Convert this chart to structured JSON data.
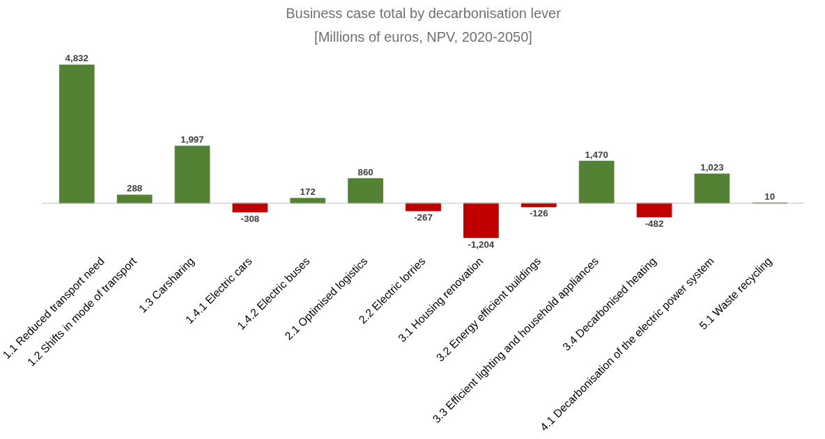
{
  "chart_data": {
    "type": "bar",
    "title": "Business case total by decarbonisation lever",
    "subtitle": "[Millions of euros, NPV, 2020-2050]",
    "categories": [
      "1.1 Reduced transport need",
      "1.2 Shifts in mode of transport",
      "1.3 Carsharing",
      "1.4.1 Electric cars",
      "1.4.2 Electric buses",
      "2.1 Optimised logistics",
      "2.2 Electric lorries",
      "3.1 Housing renovation",
      "3.2 Energy efficient buildings",
      "3.3 Efficient lighting and household appliances",
      "3.4 Decarbonised heating",
      "4.1 Decarbonisation of the electric power system",
      "5.1 Waste recycling"
    ],
    "values": [
      4832,
      288,
      1997,
      -308,
      172,
      860,
      -267,
      -1204,
      -126,
      1470,
      -482,
      1023,
      10
    ],
    "colors": [
      "#548235",
      "#548235",
      "#548235",
      "#c00000",
      "#548235",
      "#548235",
      "#c00000",
      "#c00000",
      "#c00000",
      "#548235",
      "#c00000",
      "#548235",
      "#548235"
    ],
    "value_labels": [
      "4,832",
      "288",
      "1,997",
      "-308",
      "172",
      "860",
      "-267",
      "-1,204",
      "-126",
      "1,470",
      "-482",
      "1,023",
      "10"
    ],
    "tick_labels": "x"
  }
}
